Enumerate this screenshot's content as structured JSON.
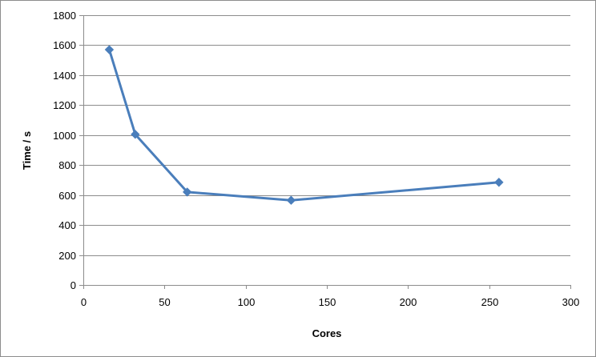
{
  "chart_data": {
    "type": "line",
    "title": "",
    "xlabel": "Cores",
    "ylabel": "Time / s",
    "xlim": [
      0,
      300
    ],
    "ylim": [
      0,
      1800
    ],
    "xticks": [
      0,
      50,
      100,
      150,
      200,
      250,
      300
    ],
    "yticks": [
      0,
      200,
      400,
      600,
      800,
      1000,
      1200,
      1400,
      1600,
      1800
    ],
    "grid": "horizontal",
    "legend": "none",
    "series": [
      {
        "color": "#4a7ebb",
        "marker": "diamond",
        "points": [
          {
            "x": 16,
            "y": 1570
          },
          {
            "x": 32,
            "y": 1005
          },
          {
            "x": 64,
            "y": 620
          },
          {
            "x": 128,
            "y": 565
          },
          {
            "x": 256,
            "y": 685
          }
        ]
      }
    ]
  }
}
